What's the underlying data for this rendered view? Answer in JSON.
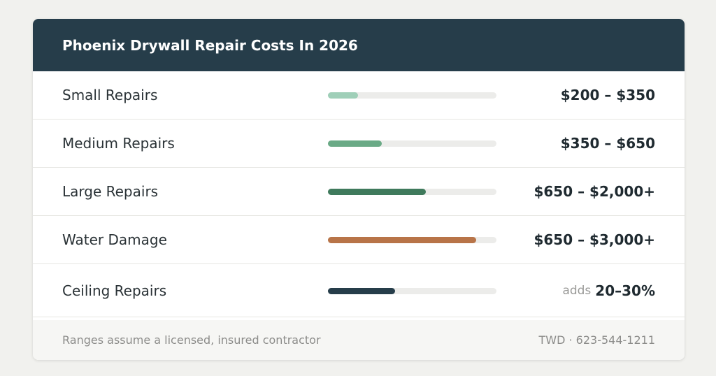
{
  "header": {
    "title": "Phoenix Drywall Repair Costs In 2026"
  },
  "rows": [
    {
      "label": "Small Repairs",
      "fill": 0.18,
      "color": "#9fcfb8",
      "range": "$200 – $350"
    },
    {
      "label": "Medium Repairs",
      "fill": 0.32,
      "color": "#6aaa86",
      "range": "$350 – $650"
    },
    {
      "label": "Large Repairs",
      "fill": 0.58,
      "color": "#3f7a5c",
      "range": "$650 – $2,000+"
    },
    {
      "label": "Water Damage",
      "fill": 0.88,
      "color": "#b87448",
      "range": "$650 – $3,000+"
    },
    {
      "label": "Ceiling Repairs",
      "fill": 0.4,
      "color": "#263d4a",
      "prefix": "adds",
      "range": "20–30%"
    }
  ],
  "footer": {
    "note": "Ranges assume a licensed, insured contractor",
    "contact": "TWD · 623-544-1211"
  }
}
